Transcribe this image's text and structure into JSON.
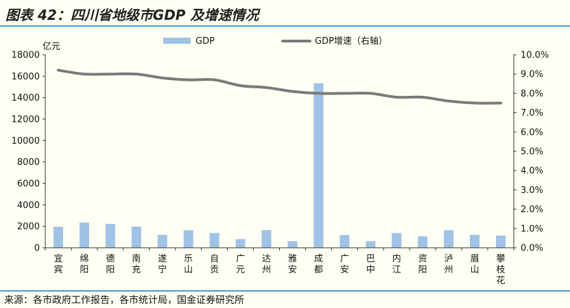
{
  "figure": {
    "title": "图表 42：四川省地级市GDP 及增速情况",
    "source": "来源：各市政府工作报告，各市统计局，国金证券研究所"
  },
  "colors": {
    "bar": "#9fc3e7",
    "line": "#7a7a7a",
    "rule": "#4a9bd8",
    "background": "#fffff3"
  },
  "chart_data": {
    "type": "bar",
    "title": "",
    "xlabel": "",
    "ylabel": "亿元",
    "y2label": "",
    "ylim": [
      0,
      18000
    ],
    "y2lim": [
      0,
      10
    ],
    "yticks": [
      "0",
      "2000",
      "4000",
      "6000",
      "8000",
      "10000",
      "12000",
      "14000",
      "16000",
      "18000"
    ],
    "y2ticks": [
      "0.0%",
      "1.0%",
      "2.0%",
      "3.0%",
      "4.0%",
      "5.0%",
      "6.0%",
      "7.0%",
      "8.0%",
      "9.0%",
      "10.0%"
    ],
    "grid": false,
    "legend": "top-center",
    "categories": [
      "宜宾",
      "绵阳",
      "德阳",
      "南充",
      "遂宁",
      "乐山",
      "自贡",
      "广元",
      "达州",
      "雅安",
      "成都",
      "广安",
      "巴中",
      "内江",
      "资阳",
      "泸州",
      "眉山",
      "攀枝花"
    ],
    "series": [
      {
        "name": "GDP",
        "type": "bar",
        "axis": "left",
        "values": [
          1950,
          2350,
          2230,
          1980,
          1200,
          1640,
          1380,
          810,
          1650,
          620,
          15340,
          1190,
          620,
          1380,
          1070,
          1640,
          1200,
          1140
        ]
      },
      {
        "name": "GDP增速（右轴）",
        "type": "line",
        "axis": "right",
        "values": [
          9.2,
          9.0,
          9.0,
          9.0,
          8.8,
          8.7,
          8.7,
          8.4,
          8.3,
          8.1,
          8.0,
          8.0,
          8.0,
          7.8,
          7.8,
          7.6,
          7.5,
          7.5
        ]
      }
    ]
  }
}
